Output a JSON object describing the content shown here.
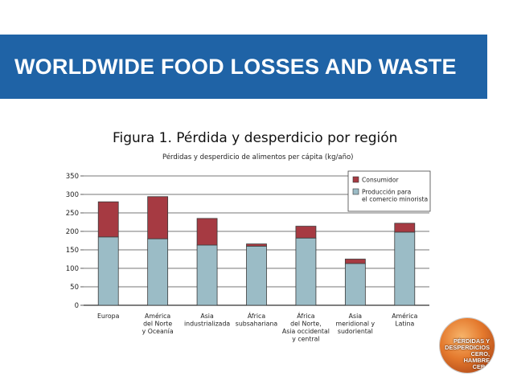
{
  "banner": {
    "title": "WORLDWIDE FOOD LOSSES AND WASTE",
    "color": "#1f63a6"
  },
  "figure": {
    "title": "Figura 1. Pérdida y desperdicio por región"
  },
  "chart_data": {
    "type": "bar",
    "stacked": true,
    "title": "Pérdidas y desperdicio de alimentos per cápita (kg/año)",
    "ylim": [
      0,
      350
    ],
    "yticks": [
      0,
      50,
      100,
      150,
      200,
      250,
      300,
      350
    ],
    "grid": true,
    "legend_position": "top-right",
    "categories": [
      [
        "Europa"
      ],
      [
        "América",
        "del Norte",
        "y Oceanía"
      ],
      [
        "Asia",
        "industrializada"
      ],
      [
        "África",
        "subsahariana"
      ],
      [
        "África",
        "del Norte,",
        "Asia occidental",
        "y central"
      ],
      [
        "Asia",
        "meridional y",
        "sudoriental"
      ],
      [
        "América",
        "Latina"
      ]
    ],
    "series": [
      {
        "name": "Producción para el comercio minorista",
        "legend_lines": [
          "Producción para",
          "el comercio minorista"
        ],
        "color": "#9bbcc6",
        "values": [
          185,
          180,
          163,
          160,
          182,
          113,
          198
        ]
      },
      {
        "name": "Consumidor",
        "legend_lines": [
          "Consumidor"
        ],
        "color": "#a63a42",
        "values": [
          95,
          114,
          72,
          6,
          32,
          12,
          24
        ]
      }
    ]
  },
  "badge": {
    "lines": [
      "PÉRDIDAS Y",
      "DESPERDICIOS",
      "CERO,",
      "HAMBRE",
      "CERO"
    ]
  }
}
